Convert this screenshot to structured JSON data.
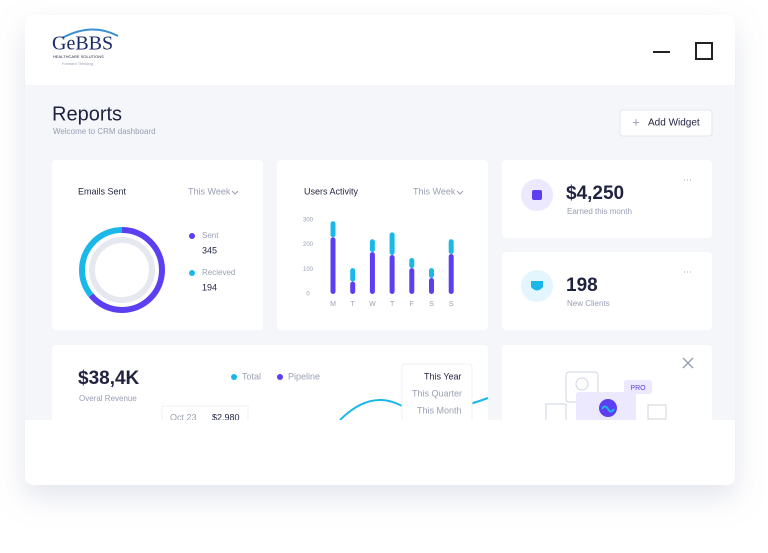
{
  "header": {
    "logo": "GeBBS",
    "logo_tagline": "HEALTHCARE SOLUTIONS",
    "logo_sub": "Forward Thinking"
  },
  "page": {
    "title": "Reports",
    "subtitle": "Welcome to CRM dashboard",
    "add_widget": "Add Widget"
  },
  "emails_card": {
    "title": "Emails Sent",
    "period": "This Week",
    "chart_data": {
      "type": "donut",
      "categories": [
        "Sent",
        "Recieved"
      ],
      "values": [
        345,
        194
      ],
      "colors": [
        "#5b3ff0",
        "#1ab8e8"
      ]
    }
  },
  "activity_card": {
    "title": "Users Activity",
    "period": "This Week",
    "chart_data": {
      "type": "stacked-bar",
      "categories": [
        "M",
        "T",
        "W",
        "T",
        "F",
        "S",
        "S"
      ],
      "series": [
        {
          "color": "#5b3ff0",
          "values": [
            230,
            50,
            170,
            158,
            105,
            65,
            162
          ]
        },
        {
          "color": "#1ab8e8",
          "values": [
            65,
            55,
            52,
            92,
            41,
            40,
            60
          ]
        }
      ],
      "ylim": [
        0,
        300
      ],
      "yticks": [
        0,
        100,
        200,
        300
      ]
    }
  },
  "earned_card": {
    "value": "$4,250",
    "label": "Earned this month"
  },
  "clients_card": {
    "value": "198",
    "label": "New Clients"
  },
  "revenue_card": {
    "value": "$38,4K",
    "label": "Overal Revenue",
    "legend": [
      {
        "name": "Total",
        "color": "#1ab8e8"
      },
      {
        "name": "Pipeline",
        "color": "#5b3ff0"
      }
    ],
    "dropdown": [
      "This Year",
      "This Quarter",
      "This Month"
    ],
    "tooltip": {
      "date": "Oct 23",
      "value": "$2.980"
    }
  },
  "promo_card": {
    "badge": "PRO"
  }
}
